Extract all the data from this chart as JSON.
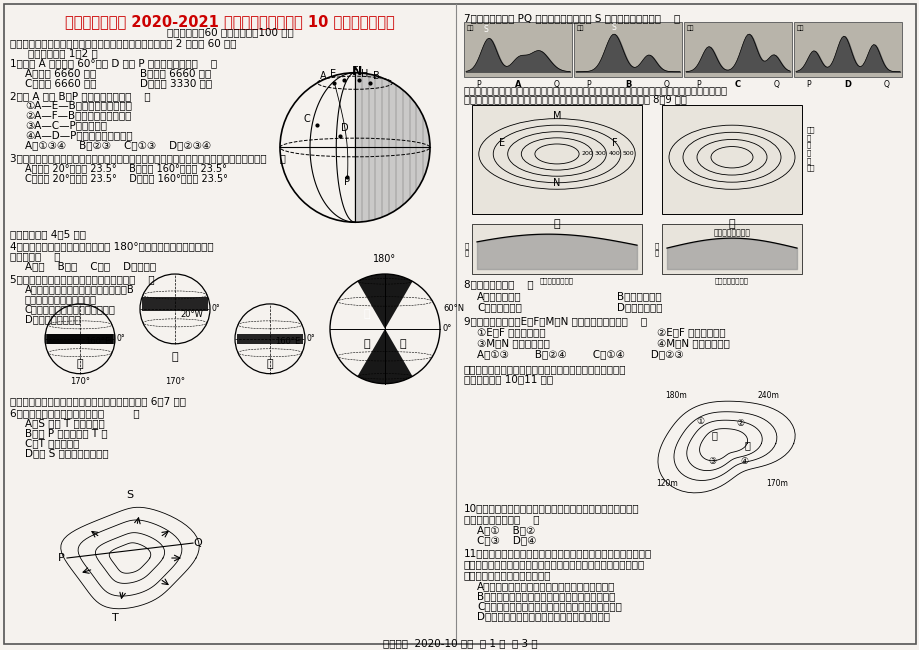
{
  "bg_color": "#f0ece4",
  "border_color": "#888888",
  "title": "四川省树德中学 2020-2021 学年高二地理上学期 10 月阶段性测试题",
  "title_color": "#cc0000",
  "subtitle": "（考试时间：60 分钟，满分：100 分）",
  "line1": "一、选择题（每小题四个选项中只有一个正确选项，每小题 2 分，共 60 分）",
  "line2": "读下图，回答 1～2 题",
  "q1": "1．图示 A 点（北纬 60°）过 D 点到 P 点的实际距离是（    ）",
  "q1a": "A．等于 6660 千米",
  "q1b": "B．小于 6660 千米",
  "q1c": "C．大于 6660 千米",
  "q1d": "D．等于 3330 千米",
  "q2": "2．由 A 点到 B、P 两点的方向表述（    ）",
  "q2_1": "①A—E—B，先向东北再向东南",
  "q2_2": "②A—F—B，先向东南再向东北",
  "q2_3": "③A—C—P，一直向南",
  "q2_4": "④A—D—P，先向东南再向西南",
  "q2ans": "A．①③④    B．②③    C．①③    D．②③④",
  "q3": "3．某人面北前立，左为东半球，右为西半球，前为热带地区，后为温带地区，则该处位置（    ）",
  "q3a": "A．东经 20°，北纬 23.5°",
  "q3b": "B．西经 160°，北纬 23.5°",
  "q3c": "C．东经 20°，南纬 23.5°",
  "q3d": "D．西经 160°，南纬 23.5°",
  "read45": "读右图，完成 4～5 题。",
  "q4": "4．甲、乙、丙三艘船同时出发驶过 180°经线，而且同时到达，速度",
  "q4b": "最快的是（    ）",
  "q4ans": "A．甲    B．乙    C．丙    D．乙和丙",
  "q5": "5．若图示甲、乙、丙三处影面积相同，则（    ）",
  "q5a": "A．甲的比例尺最小，丙的比例尺最大B",
  "q5b": "．甲、乙、丙的比例尺相同",
  "q5c": "C．比例尺：甲大于乙，乙大于丙",
  "q5d": "D．乙的比例尺最小",
  "arrowtext": "下图中箭头方向表示地表径流的方向，读图，完成 6～7 题。",
  "q6": "6．关于该图的叙述，正确的是（         ）",
  "q6a": "A．S 点在 T 点西南方向",
  "q6b": "B．在 P 点可以看到 T 点",
  "q6c": "C．T 处是集水线",
  "q6d": "D．在 S 处搭陆需注意洪水",
  "q7left": "7．正确表示经过 PQ 的地形剖面图和经过 S 点的等高线图的是（    ）",
  "q8intro": "下图是某区域等高线地形图及相应的地形剖面图，图中甲、乙两图表示的实际范围完全相同（乙图等",
  "q8intro2": "高线数据略），根据两图绘制的地形剖面图形式上存在差异，据此完成 8～9 题。",
  "q8": "8．乙图比甲图（    ）",
  "q8a": "A．比例尺更小",
  "q8b": "B．比例尺更大",
  "q8c": "C．等高距更小",
  "q8d": "D．等高距更大",
  "q9": "9．在实际地面上，E、F、M、N 四地海拔的关系是（    ）",
  "q9_1": "①E、F 海拔一定相同",
  "q9_2": "②E、F 海拔可能不同",
  "q9_3": "③M、N 海拔一定相同",
  "q9_4": "④M、N 海拔可能不同",
  "q9ans": "A．①③        B．②④        C．①④        D．②③",
  "q10intro": "读我国江南某地等高线图，该地山青水秀，水流常年奔腾不",
  "q10intro2": "息，据图回答 10～11 题。",
  "q10": "10．图示地区有大小两个湖泊，其中有一个为瀑布长期侵蚀面",
  "q10b": "成，该湖泊可能是（    ）",
  "q10ans": "A．①    B．②",
  "q10ans2": "C．③    D．④",
  "q11": "11．当地村民发现图示地区山青水秀，特别是每到夏季云雾缭绕。",
  "q11b": "于是在甲、乙两个地方发展了农家乐，但每到冬季，发发现乙农家",
  "q11c": "乐生意冷淡，其中可能的原因是",
  "q11a": "A．乙农家冬季季节降较多，湿冷，客人不愿意来",
  "q11B": "B．乙农家容易受到泥石流的影响，客人不愿意来",
  "q11C": "C．乙所在地坡度较陡，视线不好，不利于欣赏风景",
  "q11D": "D．乙农家冬季光照不足，阴冷，客人不愿意来",
  "footer": "高二地理  2020-10 阶考  第 1 页  共 3 页"
}
